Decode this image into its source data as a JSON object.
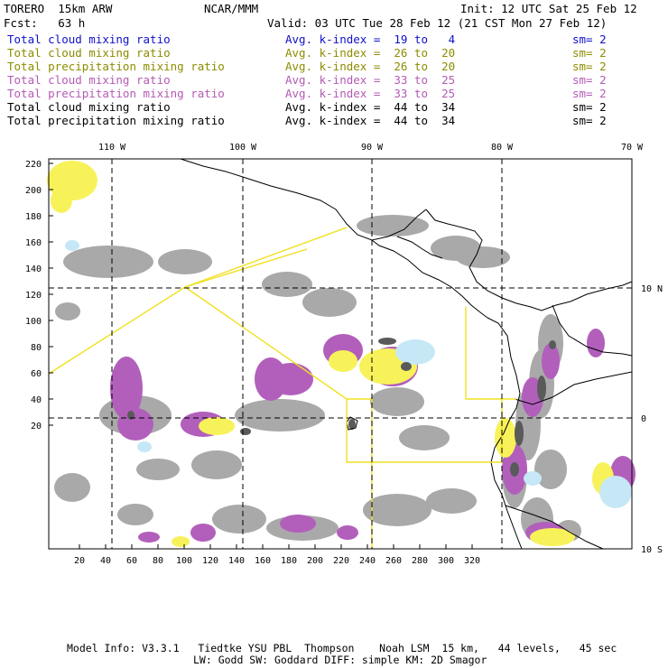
{
  "header": {
    "model": "TORERO  15km ARW",
    "org": "NCAR/MMM",
    "init": "Init: 12 UTC Sat 25 Feb 12",
    "fcst": "Fcst:   63 h",
    "valid": "Valid: 03 UTC Tue 28 Feb 12 (21 CST Mon 27 Feb 12)"
  },
  "legend": [
    {
      "field": "Total cloud mixing ratio",
      "kindex": "Avg. k-index =  19 to   4",
      "sm": "sm= 2",
      "color": "#1010c8"
    },
    {
      "field": "Total cloud mixing ratio",
      "kindex": "Avg. k-index =  26 to  20",
      "sm": "sm= 2",
      "color": "#8c8c00"
    },
    {
      "field": "Total precipitation mixing ratio",
      "kindex": "Avg. k-index =  26 to  20",
      "sm": "sm= 2",
      "color": "#8c8c00"
    },
    {
      "field": "Total cloud mixing ratio",
      "kindex": "Avg. k-index =  33 to  25",
      "sm": "sm= 2",
      "color": "#b45ab4"
    },
    {
      "field": "Total precipitation mixing ratio",
      "kindex": "Avg. k-index =  33 to  25",
      "sm": "sm= 2",
      "color": "#b45ab4"
    },
    {
      "field": "Total cloud mixing ratio",
      "kindex": "Avg. k-index =  44 to  34",
      "sm": "sm= 2",
      "color": "#000000"
    },
    {
      "field": "Total precipitation mixing ratio",
      "kindex": "Avg. k-index =  44 to  34",
      "sm": "sm= 2",
      "color": "#000000"
    }
  ],
  "axes": {
    "top": [
      "110 W",
      "100 W",
      "90 W",
      "80 W",
      "70 W"
    ],
    "right": [
      "10 N",
      "0",
      "10 S"
    ],
    "left": [
      "220",
      "200",
      "180",
      "160",
      "140",
      "120",
      "100",
      "80",
      "60",
      "40",
      "20"
    ],
    "bottom": [
      "20",
      "40",
      "60",
      "80",
      "100",
      "120",
      "140",
      "160",
      "180",
      "200",
      "220",
      "240",
      "260",
      "280",
      "300",
      "320"
    ]
  },
  "footer": {
    "line1": "Model Info: V3.3.1   Tiedtke YSU PBL  Thompson    Noah LSM  15 km,   44 levels,   45 sec",
    "line2": "LW: Godd SW: Goddard DIFF: simple KM: 2D Smagor"
  },
  "colors": {
    "gray": "#a9a9a9",
    "dark": "#5a5a5a",
    "purple": "#b25fbc",
    "yellow": "#f7f25a",
    "lightblue": "#c6e8f6",
    "region": "#f0e020"
  }
}
